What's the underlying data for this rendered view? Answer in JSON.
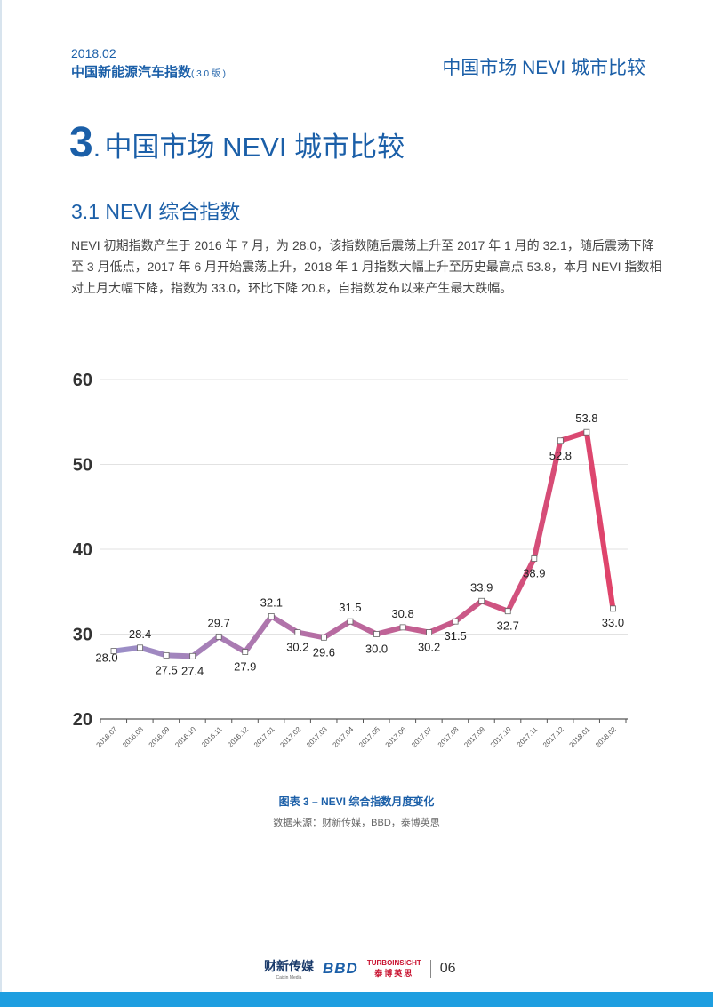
{
  "header": {
    "date": "2018.02",
    "report_name": "中国新能源汽车指数",
    "version": "( 3.0 版 )",
    "section_name": "中国市场 NEVI 城市比较"
  },
  "section": {
    "number": "3",
    "dot": ".",
    "title": "中国市场 NEVI 城市比较"
  },
  "subsection": {
    "title": "3.1 NEVI 综合指数"
  },
  "paragraph": {
    "lines": [
      "NEVI 初期指数产生于 2016 年 7 月，为 28.0，该指数随后震荡上升至 2017 年 1 月的 32.1，随后震荡下降",
      "至 3 月低点，2017 年 6 月开始震荡上升，2018 年 1 月指数大幅上升至历史最高点 53.8，本月 NEVI 指数相",
      "对上月大幅下降，指数为 33.0，环比下降 20.8，自指数发布以来产生最大跌幅。"
    ]
  },
  "chart_data": {
    "type": "line",
    "title": "",
    "xlabel": "",
    "ylabel": "",
    "ylim": [
      20,
      60
    ],
    "yticks": [
      20,
      30,
      40,
      50,
      60
    ],
    "grid": true,
    "categories": [
      "2016.07",
      "2016.08",
      "2016.09",
      "2016.10",
      "2016.11",
      "2016.12",
      "2017.01",
      "2017.02",
      "2017.03",
      "2017.04",
      "2017.05",
      "2017.06",
      "2017.07",
      "2017.08",
      "2017.09",
      "2017.10",
      "2017.11",
      "2017.12",
      "2018.01",
      "2018.02"
    ],
    "values": [
      28.0,
      28.4,
      27.5,
      27.4,
      29.7,
      27.9,
      32.1,
      30.2,
      29.6,
      31.5,
      30.0,
      30.8,
      30.2,
      31.5,
      33.9,
      32.7,
      38.9,
      52.8,
      53.8,
      33.0
    ],
    "labels": [
      "28.0",
      "28.4",
      "27.5",
      "27.4",
      "29.7",
      "27.9",
      "32.1",
      "30.2",
      "29.6",
      "31.5",
      "30.0",
      "30.8",
      "30.2",
      "31.5",
      "33.9",
      "32.7",
      "38.9",
      "52.8",
      "53.8",
      "33.0"
    ],
    "gradient_colors": [
      "#9a8fc8",
      "#b86aa0",
      "#e0436a"
    ]
  },
  "caption": "图表 3 –  NEVI 综合指数月度变化",
  "source": "数据来源：财新传媒，BBD，泰博英思",
  "footer": {
    "caixin_cn": "财新传媒",
    "caixin_en": "Caixin Media",
    "bbd": "BBD",
    "turbo_en": "TURBOINSIGHT",
    "turbo_cn": "泰博英思",
    "page": "06"
  }
}
